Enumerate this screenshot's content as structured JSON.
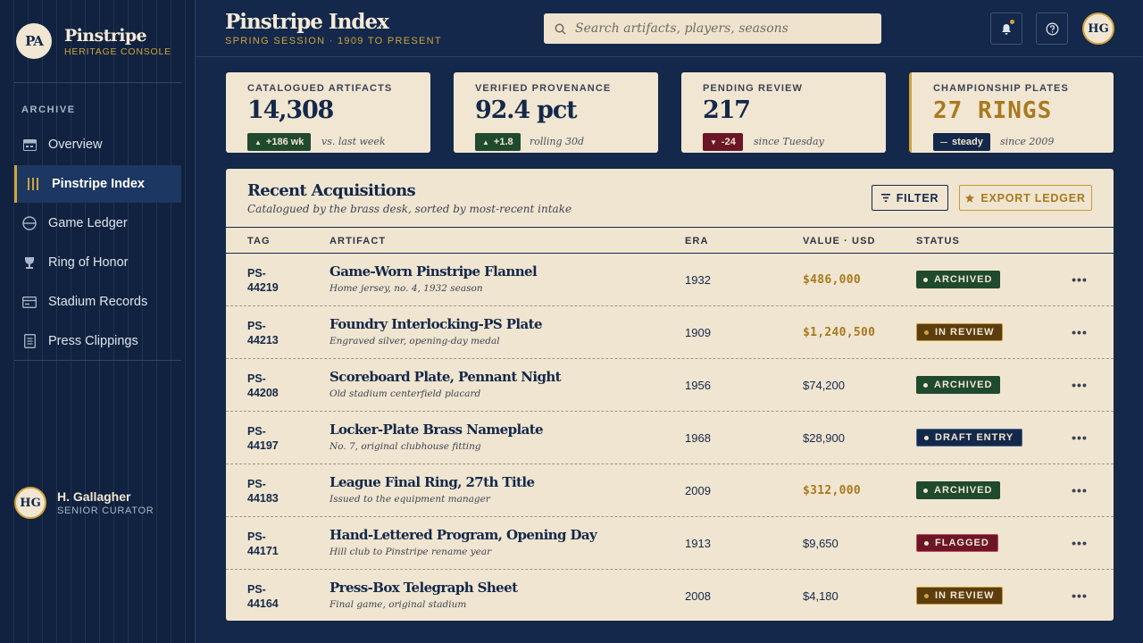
{
  "brand": {
    "mark": "PA",
    "title": "Pinstripe",
    "subtitle": "HERITAGE CONSOLE"
  },
  "sidebar": {
    "section_label": "ARCHIVE",
    "items": [
      {
        "label": "Overview",
        "icon": "grid-icon"
      },
      {
        "label": "Pinstripe Index",
        "icon": "pinstripe-icon",
        "active": true
      },
      {
        "label": "Game Ledger",
        "icon": "baseball-icon"
      },
      {
        "label": "Ring of Honor",
        "icon": "trophy-icon"
      },
      {
        "label": "Stadium Records",
        "icon": "card-icon"
      },
      {
        "label": "Press Clippings",
        "icon": "document-icon"
      }
    ]
  },
  "user": {
    "initials": "HG",
    "name": "H. Gallagher",
    "role": "SENIOR CURATOR"
  },
  "header": {
    "title": "Pinstripe Index",
    "subtitle": "SPRING SESSION · 1909 TO PRESENT",
    "search_placeholder": "Search artifacts, players, seasons",
    "avatar_initials": "HG"
  },
  "stats": [
    {
      "label": "CATALOGUED ARTIFACTS",
      "value": "14,308",
      "badge": "+186 wk",
      "badge_kind": "up",
      "note": "vs. last week"
    },
    {
      "label": "VERIFIED PROVENANCE",
      "value": "92.4 pct",
      "badge": "+1.8",
      "badge_kind": "up",
      "note": "rolling 30d"
    },
    {
      "label": "PENDING REVIEW",
      "value": "217",
      "badge": "-24",
      "badge_kind": "down",
      "note": "since Tuesday"
    },
    {
      "label": "CHAMPIONSHIP PLATES",
      "value": "27 RINGS",
      "badge": "steady",
      "badge_kind": "flat",
      "note": "since 2009"
    }
  ],
  "table": {
    "title": "Recent Acquisitions",
    "subtitle": "Catalogued by the brass desk, sorted by most-recent intake",
    "filter_label": "FILTER",
    "export_label": "EXPORT LEDGER",
    "columns": [
      "TAG",
      "ARTIFACT",
      "ERA",
      "VALUE · USD",
      "STATUS"
    ],
    "rows": [
      {
        "tag": "PS-\n44219",
        "name": "Game-Worn Pinstripe Flannel",
        "desc": "Home jersey, no. 4, 1932 season",
        "era": "1932",
        "value": "$486,000",
        "gold": true,
        "status": "ARCHIVED",
        "status_kind": "archived"
      },
      {
        "tag": "PS-\n44213",
        "name": "Foundry Interlocking-PS Plate",
        "desc": "Engraved silver, opening-day medal",
        "era": "1909",
        "value": "$1,240,500",
        "gold": true,
        "status": "IN REVIEW",
        "status_kind": "review"
      },
      {
        "tag": "PS-\n44208",
        "name": "Scoreboard Plate, Pennant Night",
        "desc": "Old stadium centerfield placard",
        "era": "1956",
        "value": "$74,200",
        "gold": false,
        "status": "ARCHIVED",
        "status_kind": "archived"
      },
      {
        "tag": "PS-\n44197",
        "name": "Locker-Plate Brass Nameplate",
        "desc": "No. 7, original clubhouse fitting",
        "era": "1968",
        "value": "$28,900",
        "gold": false,
        "status": "DRAFT ENTRY",
        "status_kind": "draft"
      },
      {
        "tag": "PS-\n44183",
        "name": "League Final Ring, 27th Title",
        "desc": "Issued to the equipment manager",
        "era": "2009",
        "value": "$312,000",
        "gold": true,
        "status": "ARCHIVED",
        "status_kind": "archived"
      },
      {
        "tag": "PS-\n44171",
        "name": "Hand-Lettered Program, Opening Day",
        "desc": "Hill club to Pinstripe rename year",
        "era": "1913",
        "value": "$9,650",
        "gold": false,
        "status": "FLAGGED",
        "status_kind": "flagged"
      },
      {
        "tag": "PS-\n44164",
        "name": "Press-Box Telegraph Sheet",
        "desc": "Final game, original stadium",
        "era": "2008",
        "value": "$4,180",
        "gold": false,
        "status": "IN REVIEW",
        "status_kind": "review"
      }
    ]
  },
  "colors": {
    "navy": "#13284a",
    "parchment": "#f1e6d2",
    "brass": "#d1a33c",
    "green": "#1f4a2e",
    "crimson": "#6b1626"
  }
}
